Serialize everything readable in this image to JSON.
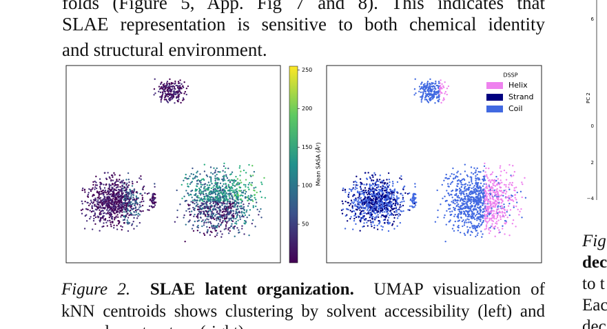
{
  "body": {
    "lines": [
      "folds (Figure 5, App. Fig 7 and 8). This indicates that",
      "SLAE representation is sensitive to both chemical identity",
      "and structural environment."
    ]
  },
  "figure": {
    "colorbar": {
      "label": "Mean SASA (Å²)",
      "lim": [
        0,
        255
      ],
      "ticks": [
        50,
        100,
        150,
        200,
        250
      ]
    },
    "legend": {
      "title": "DSSP",
      "items": [
        {
          "name": "Helix",
          "color": "#ee82ee"
        },
        {
          "name": "Strand",
          "color": "#000080"
        },
        {
          "name": "Coil",
          "color": "#4169e1"
        }
      ]
    }
  },
  "caption": {
    "label": "Figure 2.",
    "title": "SLAE latent organization.",
    "lines": [
      "UMAP visualization of",
      "kNN centroids shows clustering by solvent accessibility (left) and",
      "secondary structure (right)."
    ]
  },
  "side": {
    "axis_label": "PC 2",
    "tick_labels": [
      "6",
      "0",
      "2",
      "−4"
    ],
    "caption_fragments": [
      "Fig",
      "dec",
      "to t",
      "Eac",
      "dec"
    ]
  }
}
